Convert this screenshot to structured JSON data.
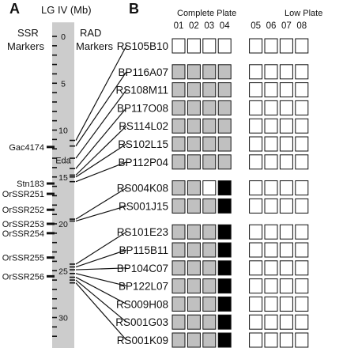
{
  "panel_a": {
    "label": "A",
    "axis_title": "LG IV (Mb)",
    "ssr_header": [
      "SSR",
      "Markers"
    ],
    "rad_header": [
      "RAD",
      "Markers"
    ],
    "ticks": [
      "0",
      "5",
      "10",
      "15",
      "20",
      "25",
      "30"
    ],
    "chromosome_span_mb": [
      -1.5,
      33.5
    ],
    "minor_tick_step_mb": 1,
    "gene": {
      "name": "Eda",
      "position_mb": 13.2
    },
    "ssr_markers": [
      {
        "name": "Gac4174",
        "position_mb": 11.8
      },
      {
        "name": "Stn183",
        "position_mb": 15.7
      },
      {
        "name": "OrSSR251",
        "position_mb": 16.8
      },
      {
        "name": "OrSSR252",
        "position_mb": 18.5
      },
      {
        "name": "OrSSR253",
        "position_mb": 20.0
      },
      {
        "name": "OrSSR254",
        "position_mb": 21.0
      },
      {
        "name": "OrSSR255",
        "position_mb": 23.6
      },
      {
        "name": "OrSSR256",
        "position_mb": 25.6
      }
    ],
    "rad_marker_positions_mb": [
      11.1,
      11.7,
      13.0,
      14.1,
      14.8,
      15.0,
      15.5,
      19.5,
      19.7,
      24.3,
      24.6,
      24.9,
      25.3,
      25.7,
      26.0,
      26.3
    ]
  },
  "panel_b": {
    "label": "B",
    "complete_plate_label": "Complete Plate",
    "low_plate_label": "Low Plate",
    "columns": [
      "01",
      "02",
      "03",
      "04",
      "05",
      "06",
      "07",
      "08"
    ],
    "colors": {
      "gray": "#c0c0c0",
      "black": "#000000",
      "white": "#ffffff",
      "chromosome": "#cccccc"
    },
    "groups": [
      [
        {
          "clone": "RS105B10",
          "cells": [
            "w",
            "w",
            "w",
            "w",
            "w",
            "w",
            "w",
            "w"
          ]
        }
      ],
      [
        {
          "clone": "BP116A07",
          "cells": [
            "g",
            "g",
            "g",
            "g",
            "w",
            "w",
            "w",
            "w"
          ]
        },
        {
          "clone": "RS108M11",
          "cells": [
            "g",
            "g",
            "g",
            "g",
            "w",
            "w",
            "w",
            "w"
          ]
        },
        {
          "clone": "BP117O08",
          "cells": [
            "g",
            "g",
            "g",
            "g",
            "w",
            "w",
            "w",
            "w"
          ]
        },
        {
          "clone": "RS114L02",
          "cells": [
            "g",
            "g",
            "g",
            "g",
            "w",
            "w",
            "w",
            "w"
          ]
        },
        {
          "clone": "RS102L15",
          "cells": [
            "g",
            "g",
            "g",
            "g",
            "w",
            "w",
            "w",
            "w"
          ]
        },
        {
          "clone": "BP112P04",
          "cells": [
            "g",
            "g",
            "g",
            "g",
            "w",
            "w",
            "w",
            "w"
          ]
        }
      ],
      [
        {
          "clone": "RS004K08",
          "cells": [
            "g",
            "g",
            "w",
            "b",
            "w",
            "w",
            "w",
            "w"
          ]
        },
        {
          "clone": "RS001J15",
          "cells": [
            "g",
            "g",
            "g",
            "b",
            "w",
            "w",
            "w",
            "w"
          ]
        }
      ],
      [
        {
          "clone": "RS101E23",
          "cells": [
            "g",
            "g",
            "g",
            "b",
            "w",
            "w",
            "w",
            "w"
          ]
        },
        {
          "clone": "BP115B11",
          "cells": [
            "g",
            "g",
            "g",
            "b",
            "w",
            "w",
            "w",
            "w"
          ]
        },
        {
          "clone": "BP104C07",
          "cells": [
            "g",
            "g",
            "g",
            "b",
            "w",
            "w",
            "w",
            "w"
          ]
        },
        {
          "clone": "BP122L07",
          "cells": [
            "g",
            "g",
            "g",
            "b",
            "w",
            "w",
            "w",
            "w"
          ]
        },
        {
          "clone": "RS009H08",
          "cells": [
            "g",
            "g",
            "g",
            "b",
            "w",
            "w",
            "w",
            "w"
          ]
        },
        {
          "clone": "RS001G03",
          "cells": [
            "g",
            "g",
            "g",
            "b",
            "w",
            "w",
            "w",
            "w"
          ]
        },
        {
          "clone": "RS001K09",
          "cells": [
            "g",
            "g",
            "g",
            "b",
            "w",
            "w",
            "w",
            "w"
          ]
        }
      ]
    ]
  }
}
